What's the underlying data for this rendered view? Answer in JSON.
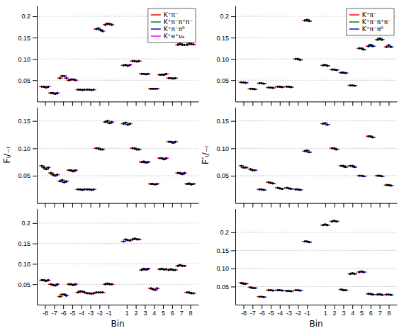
{
  "chart_data": [
    {
      "type": "scatter",
      "x": [
        -8,
        -7,
        -6,
        -5,
        -4,
        -3,
        -2,
        -1,
        1,
        2,
        3,
        4,
        5,
        6,
        7,
        8
      ],
      "xlim": [
        -8.9,
        8.9
      ],
      "xticks": [
        -8,
        -7,
        -6,
        -5,
        -4,
        -3,
        -2,
        -1,
        1,
        2,
        3,
        4,
        5,
        6,
        7,
        8
      ],
      "ylim": [
        0.0,
        0.225
      ],
      "yticks": [
        0.05,
        {
          "value": 0.1,
          "label": "0.10"
        },
        0.15,
        0.2
      ],
      "grid": true,
      "tick_labels": "y",
      "legend": "upper right",
      "series": [
        {
          "name": "K⁺π⁻",
          "color": "red",
          "xerr": 0.3,
          "values": [
            0.035,
            0.02,
            0.055,
            0.05,
            0.028,
            0.028,
            0.17,
            0.18,
            0.085,
            0.095,
            0.065,
            0.03,
            0.063,
            0.055,
            0.133,
            0.133
          ]
        },
        {
          "name": "K⁺π⁻π⁺π⁻",
          "color": "green",
          "xerr": 0.3,
          "values": [
            0.035,
            0.02,
            0.06,
            0.052,
            0.028,
            0.028,
            0.172,
            0.183,
            0.086,
            0.095,
            0.065,
            0.03,
            0.063,
            0.055,
            0.136,
            0.137
          ]
        },
        {
          "name": "K⁺π⁻π⁰",
          "color": "blue",
          "xerr": 0.3,
          "values": [
            0.033,
            0.018,
            0.06,
            0.052,
            0.027,
            0.027,
            0.168,
            0.182,
            0.084,
            0.094,
            0.064,
            0.03,
            0.063,
            0.054,
            0.133,
            0.135
          ]
        },
        {
          "name": "K⁺e⁺νₑ",
          "color": "magenta",
          "xerr": 0.3,
          "values": [
            0.035,
            0.02,
            0.055,
            0.05,
            0.028,
            0.028,
            0.165,
            0.18,
            0.086,
            0.095,
            0.065,
            0.03,
            0.065,
            0.055,
            0.133,
            0.134
          ]
        }
      ]
    },
    {
      "type": "scatter",
      "x": [
        -8,
        -7,
        -6,
        -5,
        -4,
        -3,
        -2,
        -1,
        1,
        2,
        3,
        4,
        5,
        6,
        7,
        8
      ],
      "xlim": [
        -8.9,
        8.9
      ],
      "xticks": [
        -8,
        -7,
        -6,
        -5,
        -4,
        -3,
        -2,
        -1,
        1,
        2,
        3,
        4,
        5,
        6,
        7,
        8
      ],
      "ylim": [
        0.0,
        0.225
      ],
      "yticks": [
        0.05,
        {
          "value": 0.1,
          "label": "0.10"
        },
        0.15,
        0.2
      ],
      "grid": true,
      "tick_labels": "y",
      "legend": "upper right",
      "series": [
        {
          "name": "K⁺π⁻",
          "color": "red",
          "xerr": 0.3,
          "values": [
            0.045,
            0.03,
            0.043,
            0.033,
            0.035,
            0.035,
            0.1,
            0.19,
            0.085,
            0.075,
            0.068,
            0.038,
            0.125,
            0.13,
            0.145,
            0.128
          ]
        },
        {
          "name": "K⁺π⁻π⁺π⁻",
          "color": "green",
          "xerr": 0.3,
          "values": [
            0.045,
            0.03,
            0.043,
            0.033,
            0.035,
            0.035,
            0.1,
            0.192,
            0.086,
            0.075,
            0.068,
            0.038,
            0.125,
            0.133,
            0.148,
            0.132
          ]
        },
        {
          "name": "K⁺π⁻π⁰",
          "color": "blue",
          "xerr": 0.3,
          "values": [
            0.044,
            0.029,
            0.042,
            0.032,
            0.034,
            0.034,
            0.098,
            0.189,
            0.084,
            0.074,
            0.067,
            0.037,
            0.122,
            0.13,
            0.145,
            0.128
          ]
        }
      ]
    },
    {
      "type": "scatter",
      "x": [
        -8,
        -7,
        -6,
        -5,
        -4,
        -3,
        -2,
        -1,
        1,
        2,
        3,
        4,
        5,
        6,
        7,
        8
      ],
      "xlim": [
        -8.9,
        8.9
      ],
      "xticks": [
        -8,
        -7,
        -6,
        -5,
        -4,
        -3,
        -2,
        -1,
        1,
        2,
        3,
        4,
        5,
        6,
        7,
        8
      ],
      "ylim": [
        0.0,
        0.175
      ],
      "yticks": [
        0.05,
        {
          "value": 0.1,
          "label": "0.10"
        },
        0.15
      ],
      "ylabel": "Fᵢ/₋ᵢ",
      "grid": true,
      "tick_labels": "y",
      "series": [
        {
          "color": "red",
          "xerr": 0.3,
          "values": [
            0.068,
            0.055,
            0.04,
            0.06,
            0.025,
            0.025,
            0.1,
            0.148,
            0.145,
            0.1,
            0.075,
            0.035,
            0.082,
            0.112,
            0.055,
            0.035
          ]
        },
        {
          "color": "green",
          "xerr": 0.3,
          "values": [
            0.065,
            0.052,
            0.042,
            0.06,
            0.025,
            0.025,
            0.1,
            0.15,
            0.147,
            0.1,
            0.076,
            0.035,
            0.082,
            0.112,
            0.055,
            0.036
          ]
        },
        {
          "color": "blue",
          "xerr": 0.3,
          "values": [
            0.062,
            0.05,
            0.038,
            0.058,
            0.024,
            0.024,
            0.098,
            0.146,
            0.143,
            0.098,
            0.074,
            0.034,
            0.08,
            0.11,
            0.053,
            0.034
          ]
        },
        {
          "color": "magenta",
          "xerr": 0.3,
          "values": [
            0.065,
            0.052,
            0.04,
            0.06,
            0.025,
            0.025,
            0.098,
            0.148,
            0.145,
            0.098,
            0.075,
            0.035,
            0.082,
            0.112,
            0.055,
            0.035
          ]
        }
      ]
    },
    {
      "type": "scatter",
      "x": [
        -8,
        -7,
        -6,
        -5,
        -4,
        -3,
        -2,
        -1,
        1,
        2,
        3,
        4,
        5,
        6,
        7,
        8
      ],
      "xlim": [
        -8.9,
        8.9
      ],
      "xticks": [
        -8,
        -7,
        -6,
        -5,
        -4,
        -3,
        -2,
        -1,
        1,
        2,
        3,
        4,
        5,
        6,
        7,
        8
      ],
      "ylim": [
        0.0,
        0.175
      ],
      "yticks": [
        0.05,
        {
          "value": 0.1,
          "label": "0.10"
        },
        0.15
      ],
      "ylabel": "F′ᵢ/₋ᵢ",
      "grid": true,
      "tick_labels": "y",
      "series": [
        {
          "color": "red",
          "xerr": 0.3,
          "values": [
            0.068,
            0.062,
            0.025,
            0.038,
            0.028,
            0.028,
            0.025,
            0.095,
            0.145,
            0.1,
            0.068,
            0.068,
            0.05,
            0.122,
            0.05,
            0.033
          ]
        },
        {
          "color": "green",
          "xerr": 0.3,
          "values": [
            0.065,
            0.06,
            0.025,
            0.037,
            0.027,
            0.027,
            0.025,
            0.096,
            0.146,
            0.1,
            0.068,
            0.068,
            0.05,
            0.122,
            0.05,
            0.033
          ]
        },
        {
          "color": "blue",
          "xerr": 0.3,
          "values": [
            0.065,
            0.06,
            0.024,
            0.036,
            0.026,
            0.026,
            0.024,
            0.093,
            0.143,
            0.098,
            0.066,
            0.066,
            0.049,
            0.12,
            0.049,
            0.032
          ]
        }
      ]
    },
    {
      "type": "scatter",
      "x": [
        -8,
        -7,
        -6,
        -5,
        -4,
        -3,
        -2,
        -1,
        1,
        2,
        3,
        4,
        5,
        6,
        7,
        8
      ],
      "xlim": [
        -8.9,
        8.9
      ],
      "xticks": [
        -8,
        -7,
        -6,
        -5,
        -4,
        -3,
        -2,
        -1,
        1,
        2,
        3,
        4,
        5,
        6,
        7,
        8
      ],
      "ylim": [
        0.0,
        0.235
      ],
      "yticks": [
        0.05,
        {
          "value": 0.1,
          "label": "0.10"
        },
        0.15,
        0.2
      ],
      "xlabel": "Bin",
      "grid": true,
      "series": [
        {
          "color": "red",
          "xerr": 0.3,
          "values": [
            0.06,
            0.05,
            0.02,
            0.05,
            0.03,
            0.028,
            0.03,
            0.05,
            0.155,
            0.16,
            0.085,
            0.04,
            0.087,
            0.085,
            0.095,
            0.03
          ]
        },
        {
          "color": "green",
          "xerr": 0.3,
          "values": [
            0.06,
            0.048,
            0.025,
            0.05,
            0.033,
            0.028,
            0.03,
            0.052,
            0.16,
            0.162,
            0.088,
            0.038,
            0.088,
            0.087,
            0.097,
            0.03
          ]
        },
        {
          "color": "blue",
          "xerr": 0.3,
          "values": [
            0.058,
            0.047,
            0.025,
            0.048,
            0.032,
            0.027,
            0.03,
            0.05,
            0.158,
            0.16,
            0.086,
            0.036,
            0.086,
            0.085,
            0.095,
            0.028
          ]
        },
        {
          "color": "magenta",
          "xerr": 0.3,
          "values": [
            0.06,
            0.05,
            0.022,
            0.05,
            0.03,
            0.028,
            0.03,
            0.05,
            0.157,
            0.16,
            0.088,
            0.04,
            0.087,
            0.085,
            0.095,
            0.028
          ]
        }
      ]
    },
    {
      "type": "scatter",
      "x": [
        -8,
        -7,
        -6,
        -5,
        -4,
        -3,
        -2,
        -1,
        1,
        2,
        3,
        4,
        5,
        6,
        7,
        8
      ],
      "xlim": [
        -8.9,
        8.9
      ],
      "xticks": [
        -8,
        -7,
        -6,
        -5,
        -4,
        -3,
        -2,
        -1,
        1,
        2,
        3,
        4,
        5,
        6,
        7,
        8
      ],
      "ylim": [
        0.0,
        0.265
      ],
      "yticks": [
        0.05,
        {
          "value": 0.1,
          "label": "0.10"
        },
        0.15,
        0.2
      ],
      "xlabel": "Bin",
      "grid": true,
      "series": [
        {
          "color": "red",
          "xerr": 0.3,
          "values": [
            0.06,
            0.048,
            0.022,
            0.04,
            0.04,
            0.038,
            0.04,
            0.175,
            0.22,
            0.23,
            0.042,
            0.085,
            0.09,
            0.03,
            0.028,
            0.028
          ]
        },
        {
          "color": "green",
          "xerr": 0.3,
          "values": [
            0.058,
            0.046,
            0.022,
            0.04,
            0.04,
            0.038,
            0.04,
            0.175,
            0.222,
            0.232,
            0.04,
            0.087,
            0.092,
            0.03,
            0.029,
            0.028
          ]
        },
        {
          "color": "blue",
          "xerr": 0.3,
          "values": [
            0.058,
            0.046,
            0.021,
            0.039,
            0.039,
            0.037,
            0.039,
            0.173,
            0.22,
            0.23,
            0.04,
            0.085,
            0.09,
            0.028,
            0.027,
            0.027
          ]
        }
      ]
    }
  ]
}
